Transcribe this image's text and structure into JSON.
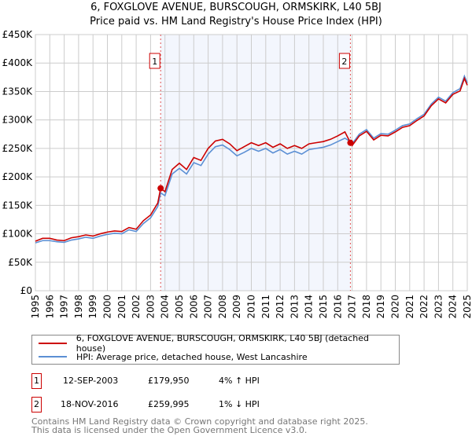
{
  "chart_data": {
    "type": "line",
    "title": "6, FOXGLOVE AVENUE, BURSCOUGH, ORMSKIRK, L40 5BJ",
    "subtitle": "Price paid vs. HM Land Registry's House Price Index (HPI)",
    "ylim": [
      0,
      450000
    ],
    "xlim": [
      1995,
      2025
    ],
    "yticks": [
      {
        "v": 0,
        "label": "£0"
      },
      {
        "v": 50000,
        "label": "£50K"
      },
      {
        "v": 100000,
        "label": "£100K"
      },
      {
        "v": 150000,
        "label": "£150K"
      },
      {
        "v": 200000,
        "label": "£200K"
      },
      {
        "v": 250000,
        "label": "£250K"
      },
      {
        "v": 300000,
        "label": "£300K"
      },
      {
        "v": 350000,
        "label": "£350K"
      },
      {
        "v": 400000,
        "label": "£400K"
      },
      {
        "v": 450000,
        "label": "£450K"
      }
    ],
    "xticks": [
      "1995",
      "1996",
      "1997",
      "1998",
      "1999",
      "2000",
      "2001",
      "2002",
      "2003",
      "2004",
      "2005",
      "2006",
      "2007",
      "2008",
      "2009",
      "2010",
      "2011",
      "2012",
      "2013",
      "2014",
      "2015",
      "2016",
      "2017",
      "2018",
      "2019",
      "2020",
      "2021",
      "2022",
      "2023",
      "2024",
      "2025"
    ],
    "x": [
      1995,
      1995.5,
      1996,
      1996.5,
      1997,
      1997.5,
      1998,
      1998.5,
      1999,
      1999.5,
      2000,
      2000.5,
      2001,
      2001.5,
      2002,
      2002.5,
      2003,
      2003.5,
      2003.7,
      2004,
      2004.5,
      2005,
      2005.5,
      2006,
      2006.5,
      2007,
      2007.5,
      2008,
      2008.5,
      2009,
      2009.5,
      2010,
      2010.5,
      2011,
      2011.5,
      2012,
      2012.5,
      2013,
      2013.5,
      2014,
      2014.5,
      2015,
      2015.5,
      2016,
      2016.5,
      2016.88,
      2017,
      2017.5,
      2018,
      2018.5,
      2019,
      2019.5,
      2020,
      2020.5,
      2021,
      2021.5,
      2022,
      2022.5,
      2023,
      2023.5,
      2024,
      2024.5,
      2024.8,
      2025
    ],
    "series": [
      {
        "name": "6, FOXGLOVE AVENUE, BURSCOUGH, ORMSKIRK, L40 5BJ (detached house)",
        "color": "#cc0000",
        "values": [
          87000,
          92000,
          92000,
          89000,
          88000,
          93000,
          95000,
          98000,
          96000,
          100000,
          103000,
          105000,
          104000,
          111000,
          108000,
          123000,
          133000,
          154000,
          179950,
          174000,
          213000,
          224000,
          213000,
          234000,
          229000,
          250000,
          263000,
          266000,
          258000,
          246000,
          253000,
          260000,
          255000,
          260000,
          252000,
          258000,
          250000,
          255000,
          250000,
          258000,
          260000,
          262000,
          266000,
          272000,
          279000,
          259995,
          255000,
          272000,
          280000,
          265000,
          273000,
          272000,
          279000,
          287000,
          290000,
          299000,
          307000,
          325000,
          337000,
          330000,
          345000,
          351000,
          373000,
          361000
        ]
      },
      {
        "name": "HPI: Average price, detached house, West Lancashire",
        "color": "#5b8fd4",
        "values": [
          84000,
          88000,
          88000,
          86000,
          85000,
          89000,
          91000,
          94000,
          92000,
          96000,
          99000,
          101000,
          100000,
          107000,
          104000,
          118000,
          128000,
          148000,
          172000,
          167000,
          205000,
          215000,
          205000,
          225000,
          220000,
          240000,
          253000,
          256000,
          248000,
          237000,
          243000,
          250000,
          245000,
          250000,
          242000,
          248000,
          240000,
          245000,
          240000,
          248000,
          250000,
          252000,
          256000,
          262000,
          268000,
          262000,
          258000,
          275000,
          283000,
          268000,
          276000,
          275000,
          282000,
          290000,
          293000,
          302000,
          310000,
          328000,
          340000,
          333000,
          348000,
          355000,
          377000,
          365000
        ]
      }
    ],
    "shaded_range": [
      2003.7,
      2016.88
    ],
    "annotations": [
      {
        "label": "1",
        "x": 2003.7,
        "y": 179950
      },
      {
        "label": "2",
        "x": 2016.88,
        "y": 259995
      }
    ]
  },
  "legend": {
    "property": "6, FOXGLOVE AVENUE, BURSCOUGH, ORMSKIRK, L40 5BJ (detached house)",
    "hpi": "HPI: Average price, detached house, West Lancashire"
  },
  "transactions": [
    {
      "num": "1",
      "date": "12-SEP-2003",
      "price": "£179,950",
      "hpi": "4% ↑ HPI"
    },
    {
      "num": "2",
      "date": "18-NOV-2016",
      "price": "£259,995",
      "hpi": "1% ↓ HPI"
    }
  ],
  "footer": {
    "line1": "Contains HM Land Registry data © Crown copyright and database right 2025.",
    "line2": "This data is licensed under the Open Government Licence v3.0."
  }
}
